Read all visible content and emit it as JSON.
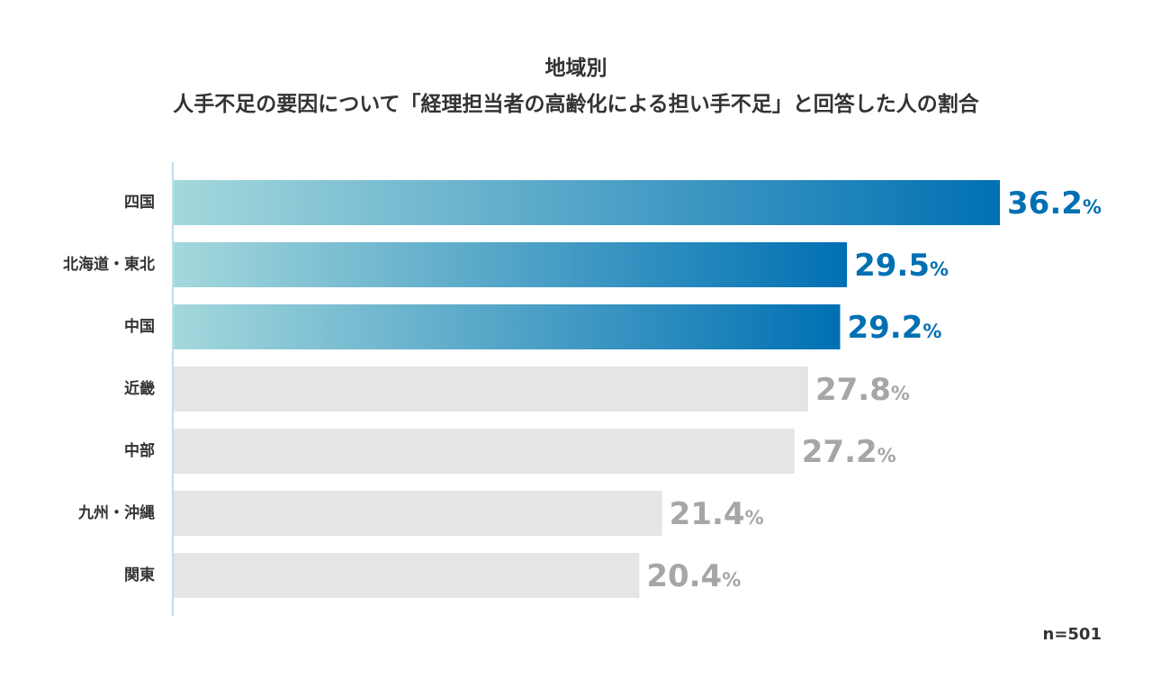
{
  "chart_data": {
    "type": "bar",
    "orientation": "horizontal",
    "title_line1": "地域別",
    "title_line2": "人手不足の要因について「経理担当者の高齢化による担い手不足」と回答した人の割合",
    "categories": [
      "四国",
      "北海道・東北",
      "中国",
      "近畿",
      "中部",
      "九州・沖縄",
      "関東"
    ],
    "values": [
      36.2,
      29.5,
      29.2,
      27.8,
      27.2,
      21.4,
      20.4
    ],
    "value_labels": [
      "36.2",
      "29.5",
      "29.2",
      "27.8",
      "27.2",
      "21.4",
      "20.4"
    ],
    "unit": "%",
    "highlighted": [
      true,
      true,
      true,
      false,
      false,
      false,
      false
    ],
    "xlim": [
      0,
      36.2
    ],
    "sample_size": "n=501",
    "colors": {
      "highlight_start": "#a4d8dc",
      "highlight_end": "#0070b3",
      "highlight_label": "#0070b3",
      "normal_bar": "#e5e5e5",
      "normal_label": "#a6a6a6",
      "axis": "#a9d6e0",
      "text": "#333333"
    }
  }
}
